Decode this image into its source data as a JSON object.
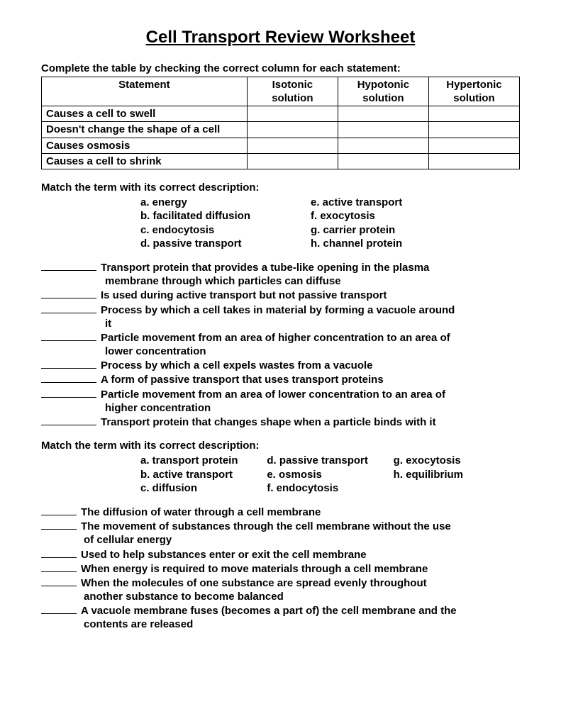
{
  "title": "Cell Transport Review Worksheet",
  "instruction1": "Complete the table by checking the correct column for each statement:",
  "table": {
    "headers": [
      "Statement",
      "Isotonic solution",
      "Hypotonic solution",
      "Hypertonic solution"
    ],
    "rows": [
      "Causes a cell to swell",
      "Doesn't change the shape of a cell",
      "Causes osmosis",
      "Causes a cell to shrink"
    ]
  },
  "match_instruction": "Match the term with its correct description:",
  "match1": {
    "left": [
      "a. energy",
      "b. facilitated diffusion",
      "c. endocytosis",
      "d. passive transport"
    ],
    "right": [
      "e. active transport",
      "f. exocytosis",
      "g. carrier protein",
      "h. channel protein"
    ]
  },
  "questions1": [
    [
      "Transport protein that provides a tube-like opening in the plasma",
      "membrane through which particles can diffuse"
    ],
    [
      "Is used during active transport but not passive transport"
    ],
    [
      "Process by which a cell takes in material by forming a vacuole around",
      "it"
    ],
    [
      "Particle movement from an area of higher concentration to an area of",
      "lower concentration"
    ],
    [
      "Process by which a cell expels wastes from a vacuole"
    ],
    [
      "A form of passive transport that uses transport proteins"
    ],
    [
      "Particle movement from an area of lower concentration to an area of",
      "higher concentration"
    ],
    [
      "Transport protein that changes shape when a particle binds with it"
    ]
  ],
  "match2": {
    "col1": [
      "a. transport protein",
      "b. active transport",
      "c. diffusion"
    ],
    "col2": [
      "d. passive transport",
      "e. osmosis",
      "f. endocytosis"
    ],
    "col3": [
      "g. exocytosis",
      "h. equilibrium",
      ""
    ]
  },
  "questions2": [
    [
      "The diffusion of water through a cell membrane"
    ],
    [
      "The movement of substances through the cell membrane without the use",
      "of cellular energy"
    ],
    [
      "Used to help substances enter or exit the cell membrane"
    ],
    [
      "When energy is required to move materials through a cell membrane"
    ],
    [
      "When the molecules of one substance are spread evenly throughout",
      "another substance to become balanced"
    ],
    [
      "A vacuole membrane fuses (becomes a part of) the cell membrane and the",
      "contents are released"
    ]
  ]
}
